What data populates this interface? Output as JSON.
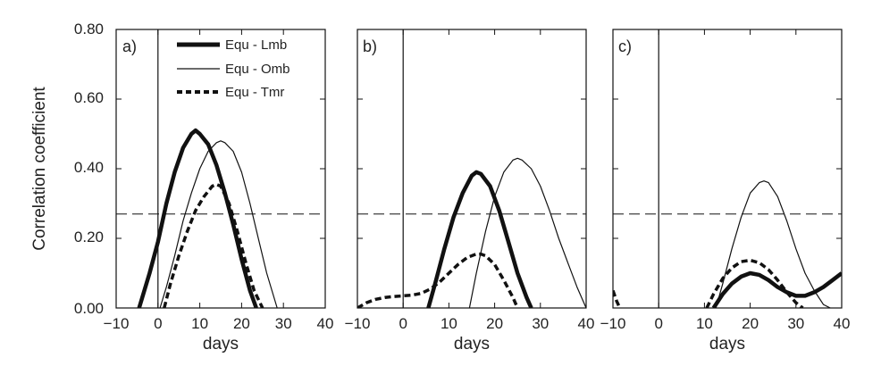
{
  "chart_data": {
    "type": "line",
    "ylabel": "Correlation coefficient",
    "ylim": [
      0,
      0.8
    ],
    "yticks": [
      "0.00",
      "0.20",
      "0.40",
      "0.60",
      "0.80"
    ],
    "xlim": [
      -10,
      40
    ],
    "xticks": [
      "−10",
      "0",
      "10",
      "20",
      "30",
      "40"
    ],
    "significance_level": 0.27,
    "legend": {
      "placement": "top-left panel a",
      "entries": [
        {
          "label": "Equ - Lmb",
          "style": "thick-solid"
        },
        {
          "label": "Equ - Omb",
          "style": "thin-solid"
        },
        {
          "label": "Equ - Tmr",
          "style": "thick-dashed"
        }
      ]
    },
    "panels": [
      {
        "label": "a)",
        "xlabel": "days",
        "series": [
          {
            "name": "Equ - Lmb",
            "style": "thick-solid",
            "x": [
              -4.5,
              -2,
              0,
              2,
              4,
              6,
              8,
              9,
              10,
              12,
              14,
              16,
              18,
              20,
              22,
              23.5
            ],
            "y": [
              0,
              0.1,
              0.19,
              0.3,
              0.39,
              0.46,
              0.5,
              0.51,
              0.5,
              0.47,
              0.41,
              0.33,
              0.24,
              0.14,
              0.05,
              0
            ]
          },
          {
            "name": "Equ - Omb",
            "style": "thin-solid",
            "x": [
              0.5,
              2,
              4,
              6,
              8,
              10,
              12,
              14,
              15,
              16,
              18,
              20,
              22,
              24,
              26,
              28.5
            ],
            "y": [
              0,
              0.06,
              0.15,
              0.25,
              0.33,
              0.4,
              0.45,
              0.475,
              0.48,
              0.475,
              0.45,
              0.39,
              0.3,
              0.2,
              0.1,
              0
            ]
          },
          {
            "name": "Equ - Tmr",
            "style": "thick-dashed",
            "x": [
              1.5,
              3,
              5,
              7,
              9,
              11,
              13,
              14,
              15,
              17,
              19,
              21,
              23,
              25
            ],
            "y": [
              0,
              0.07,
              0.15,
              0.22,
              0.28,
              0.32,
              0.35,
              0.355,
              0.35,
              0.3,
              0.22,
              0.13,
              0.05,
              0
            ]
          }
        ]
      },
      {
        "label": "b)",
        "xlabel": "days",
        "series": [
          {
            "name": "Equ - Lmb",
            "style": "thick-solid",
            "x": [
              5.5,
              7,
              9,
              11,
              13,
              15,
              16,
              17,
              19,
              21,
              23,
              25,
              27,
              28
            ],
            "y": [
              0,
              0.07,
              0.17,
              0.26,
              0.33,
              0.38,
              0.39,
              0.385,
              0.35,
              0.28,
              0.19,
              0.1,
              0.03,
              0
            ]
          },
          {
            "name": "Equ - Omb",
            "style": "thin-solid",
            "x": [
              14.5,
              16,
              18,
              20,
              22,
              24,
              25,
              26,
              28,
              30,
              32,
              34,
              36,
              38,
              40
            ],
            "y": [
              0,
              0.1,
              0.22,
              0.32,
              0.39,
              0.425,
              0.43,
              0.425,
              0.4,
              0.35,
              0.28,
              0.2,
              0.13,
              0.06,
              0
            ]
          },
          {
            "name": "Equ - Tmr",
            "style": "thick-dashed",
            "x": [
              -10,
              -8,
              -6,
              -4,
              -2,
              0,
              2,
              4,
              6,
              8,
              10,
              12,
              14,
              16,
              17,
              18,
              20,
              22,
              24,
              25
            ],
            "y": [
              0,
              0.015,
              0.025,
              0.03,
              0.033,
              0.035,
              0.037,
              0.042,
              0.055,
              0.075,
              0.1,
              0.125,
              0.145,
              0.155,
              0.155,
              0.15,
              0.125,
              0.08,
              0.03,
              0
            ]
          }
        ]
      },
      {
        "label": "c)",
        "xlabel": "days",
        "series": [
          {
            "name": "Equ - Lmb",
            "style": "thick-solid",
            "x": [
              12,
              14,
              16,
              18,
              20,
              22,
              24,
              26,
              28,
              30,
              32,
              34,
              36,
              38,
              40
            ],
            "y": [
              0,
              0.04,
              0.07,
              0.09,
              0.1,
              0.095,
              0.08,
              0.06,
              0.045,
              0.035,
              0.035,
              0.045,
              0.06,
              0.08,
              0.1
            ]
          },
          {
            "name": "Equ - Omb",
            "style": "thin-solid",
            "x": [
              12.5,
              14,
              16,
              18,
              20,
              22,
              23,
              24,
              26,
              28,
              30,
              32,
              34,
              36,
              37.5
            ],
            "y": [
              0,
              0.07,
              0.17,
              0.26,
              0.33,
              0.36,
              0.365,
              0.36,
              0.32,
              0.25,
              0.17,
              0.1,
              0.05,
              0.01,
              0
            ]
          },
          {
            "name": "Equ - Tmr",
            "style": "thick-dashed",
            "x": [
              10.5,
              12,
              14,
              16,
              18,
              20,
              22,
              24,
              26,
              28,
              30,
              31.5
            ],
            "y": [
              0,
              0.04,
              0.085,
              0.115,
              0.133,
              0.137,
              0.13,
              0.11,
              0.08,
              0.045,
              0.015,
              0
            ]
          },
          {
            "name": "Equ - Tmr",
            "style": "thick-dashed",
            "x": [
              -10,
              -9.2,
              -8.5
            ],
            "y": [
              0.05,
              0.02,
              0
            ]
          }
        ]
      }
    ]
  }
}
